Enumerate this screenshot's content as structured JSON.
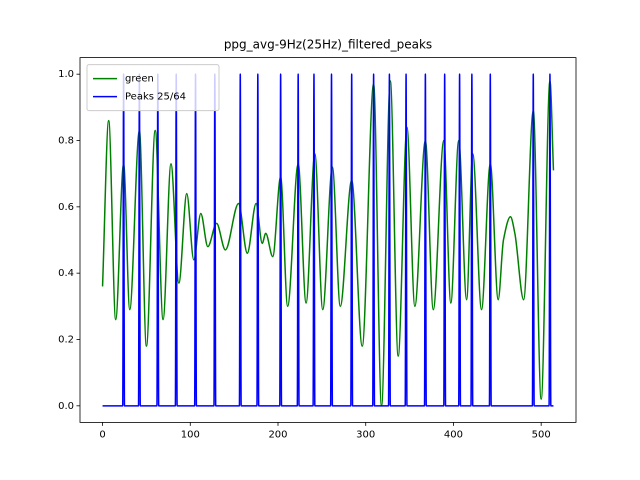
{
  "chart_data": {
    "type": "line",
    "title": "ppg_avg-9Hz(25Hz)_filtered_peaks",
    "xlim": [
      -25.7,
      539.7
    ],
    "xticks": [
      0,
      100,
      200,
      300,
      400,
      500
    ],
    "ylim": [
      -0.05,
      1.05
    ],
    "yticks": [
      {
        "value": 0,
        "label": "0.0"
      },
      0.2,
      0.4,
      0.6,
      0.8,
      {
        "value": 1,
        "label": "1.0"
      }
    ],
    "legend": "upper left",
    "series": [
      {
        "name": "green",
        "color": "#008000",
        "x": [
          0,
          7,
          15,
          24,
          31,
          42,
          50,
          60,
          69,
          78,
          87,
          96,
          104,
          112,
          120,
          130,
          140,
          155,
          165,
          175,
          182,
          186,
          194,
          203,
          211,
          223,
          232,
          242,
          251,
          262,
          271,
          284,
          296,
          309,
          318,
          328,
          337,
          347,
          356,
          368,
          377,
          389,
          397,
          406,
          415,
          422,
          432,
          442,
          451,
          457,
          465,
          470,
          480,
          491,
          500,
          510,
          514
        ],
        "values": [
          0.36,
          0.86,
          0.26,
          0.73,
          0.29,
          0.83,
          0.18,
          0.83,
          0.26,
          0.73,
          0.37,
          0.64,
          0.44,
          0.58,
          0.48,
          0.55,
          0.47,
          0.61,
          0.46,
          0.61,
          0.49,
          0.52,
          0.45,
          0.69,
          0.3,
          0.73,
          0.31,
          0.76,
          0.29,
          0.72,
          0.3,
          0.68,
          0.18,
          0.97,
          0.0,
          0.98,
          0.15,
          0.84,
          0.3,
          0.8,
          0.29,
          0.8,
          0.31,
          0.8,
          0.32,
          0.76,
          0.29,
          0.73,
          0.32,
          0.5,
          0.57,
          0.52,
          0.32,
          0.89,
          0.02,
          0.98,
          0.71
        ]
      },
      {
        "name": "Peaks 25/64",
        "color": "#0000ff",
        "x": [
          0,
          23,
          24,
          25,
          41,
          42,
          43,
          62,
          63,
          64,
          83,
          84,
          85,
          105,
          106,
          107,
          127,
          128,
          129,
          156,
          157,
          158,
          176,
          177,
          178,
          202,
          203,
          204,
          222,
          223,
          224,
          240,
          241,
          242,
          260,
          261,
          262,
          283,
          284,
          285,
          308,
          309,
          310,
          326,
          327,
          328,
          345,
          346,
          347,
          367,
          368,
          369,
          389,
          390,
          391,
          406,
          407,
          408,
          420,
          421,
          422,
          441,
          442,
          443,
          490,
          491,
          492,
          509,
          510,
          511,
          514
        ],
        "values": [
          0,
          0,
          1,
          0,
          0,
          1,
          0,
          0,
          1,
          0,
          0,
          1,
          0,
          0,
          1,
          0,
          0,
          1,
          0,
          0,
          1,
          0,
          0,
          1,
          0,
          0,
          1,
          0,
          0,
          1,
          0,
          0,
          1,
          0,
          0,
          1,
          0,
          0,
          1,
          0,
          0,
          1,
          0,
          0,
          1,
          0,
          0,
          1,
          0,
          0,
          1,
          0,
          0,
          1,
          0,
          0,
          1,
          0,
          0,
          1,
          0,
          0,
          1,
          0,
          0,
          1,
          0,
          0,
          1,
          0,
          0
        ]
      }
    ]
  }
}
